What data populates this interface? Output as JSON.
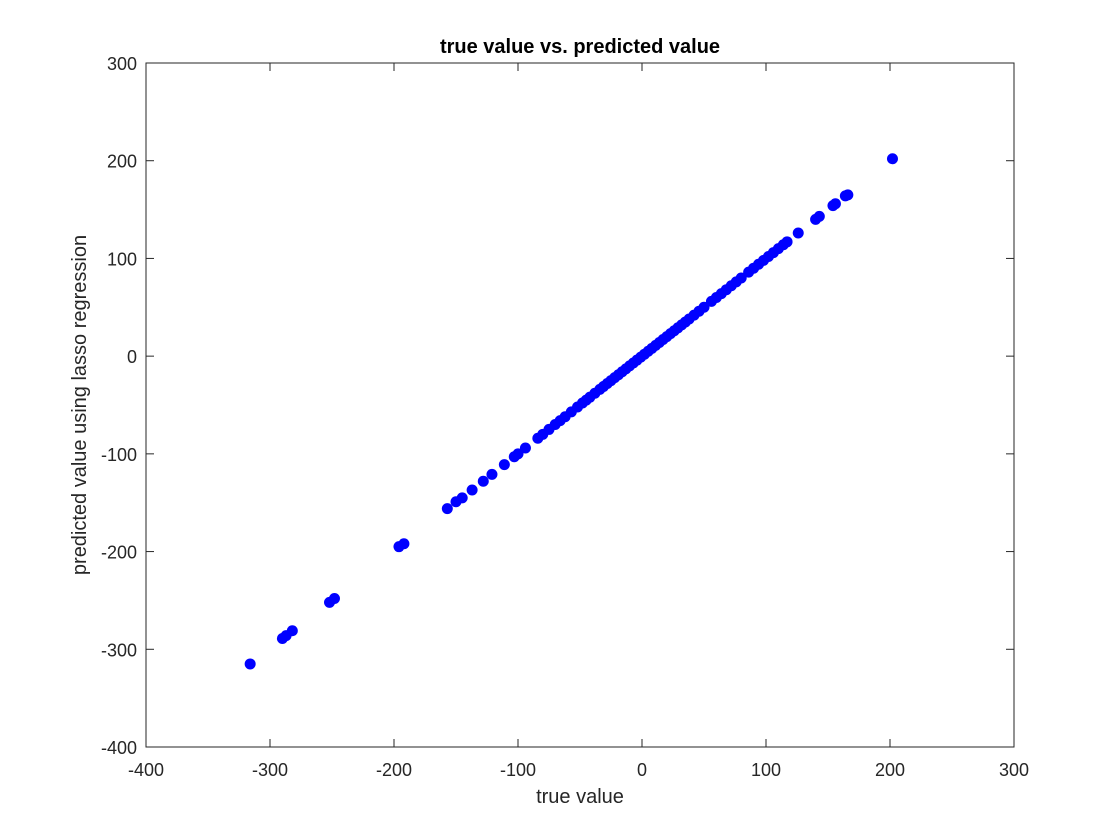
{
  "chart_data": {
    "type": "scatter",
    "title": "true value vs. predicted value",
    "xlabel": "true value",
    "ylabel": "predicted value using lasso regression",
    "xlim": [
      -400,
      300
    ],
    "ylim": [
      -400,
      300
    ],
    "xticks": [
      -400,
      -300,
      -200,
      -100,
      0,
      100,
      200,
      300
    ],
    "yticks": [
      -400,
      -300,
      -200,
      -100,
      0,
      100,
      200,
      300
    ],
    "grid": false,
    "marker_color": "#0000ff",
    "series": [
      {
        "points": [
          [
            -316,
            -315
          ],
          [
            -290,
            -289
          ],
          [
            -287,
            -286
          ],
          [
            -282,
            -281
          ],
          [
            -252,
            -252
          ],
          [
            -248,
            -248
          ],
          [
            -196,
            -195
          ],
          [
            -192,
            -192
          ],
          [
            -157,
            -156
          ],
          [
            -150,
            -149
          ],
          [
            -145,
            -145
          ],
          [
            -137,
            -137
          ],
          [
            -128,
            -128
          ],
          [
            -121,
            -121
          ],
          [
            -111,
            -111
          ],
          [
            -103,
            -103
          ],
          [
            -100,
            -100
          ],
          [
            -94,
            -94
          ],
          [
            -84,
            -84
          ],
          [
            -80,
            -80
          ],
          [
            -75,
            -75
          ],
          [
            -70,
            -70
          ],
          [
            -66,
            -66
          ],
          [
            -62,
            -62
          ],
          [
            -57,
            -57
          ],
          [
            -52,
            -52
          ],
          [
            -48,
            -48
          ],
          [
            -45,
            -45
          ],
          [
            -42,
            -42
          ],
          [
            -38,
            -38
          ],
          [
            -34,
            -34
          ],
          [
            -31,
            -31
          ],
          [
            -28,
            -28
          ],
          [
            -25,
            -25
          ],
          [
            -22,
            -22
          ],
          [
            -19,
            -19
          ],
          [
            -16,
            -16
          ],
          [
            -13,
            -13
          ],
          [
            -10,
            -10
          ],
          [
            -7,
            -7
          ],
          [
            -4,
            -4
          ],
          [
            -1,
            -1
          ],
          [
            2,
            2
          ],
          [
            5,
            5
          ],
          [
            8,
            8
          ],
          [
            11,
            11
          ],
          [
            14,
            14
          ],
          [
            17,
            17
          ],
          [
            20,
            20
          ],
          [
            23,
            23
          ],
          [
            26,
            26
          ],
          [
            29,
            29
          ],
          [
            32,
            32
          ],
          [
            35,
            35
          ],
          [
            38,
            38
          ],
          [
            42,
            42
          ],
          [
            46,
            46
          ],
          [
            50,
            50
          ],
          [
            56,
            56
          ],
          [
            60,
            60
          ],
          [
            64,
            64
          ],
          [
            68,
            68
          ],
          [
            72,
            72
          ],
          [
            76,
            76
          ],
          [
            80,
            80
          ],
          [
            86,
            86
          ],
          [
            90,
            90
          ],
          [
            94,
            94
          ],
          [
            98,
            98
          ],
          [
            102,
            102
          ],
          [
            106,
            106
          ],
          [
            110,
            110
          ],
          [
            114,
            114
          ],
          [
            117,
            117
          ],
          [
            126,
            126
          ],
          [
            140,
            140
          ],
          [
            143,
            143
          ],
          [
            154,
            154
          ],
          [
            156,
            156
          ],
          [
            164,
            164
          ],
          [
            166,
            165
          ],
          [
            202,
            202
          ]
        ]
      }
    ]
  }
}
